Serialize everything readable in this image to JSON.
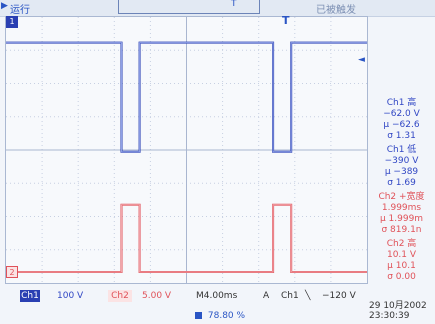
{
  "header": {
    "run_status": "运行",
    "trigger_status": "已被触发"
  },
  "markers": {
    "trigger_t": "T",
    "ch1": "1",
    "ch2": "2",
    "level_arrow": "◄",
    "run_icon": "▶"
  },
  "waveforms": {
    "ch1_color": "#2a3fb2",
    "ch2_color": "#e05259",
    "ch1_levels": {
      "high": -62.0,
      "low": -390
    },
    "ch2_levels": {
      "high": 10.1,
      "low": 0
    },
    "period_divisions": 4.2,
    "pulse_width_divisions": 0.5
  },
  "measurements": {
    "ch1_high": {
      "title": "Ch1 高",
      "value": "−62.0 V",
      "mean": "μ −62.6",
      "sigma": "σ 1.31"
    },
    "ch1_low": {
      "title": "Ch1 低",
      "value": "−390 V",
      "mean": "μ −389",
      "sigma": "σ 1.69"
    },
    "ch2_width": {
      "title": "Ch2 +宽度",
      "value": "1.999ms",
      "mean": "μ 1.999m",
      "sigma": "σ 819.1n"
    },
    "ch2_high": {
      "title": "Ch2 高",
      "value": "10.1 V",
      "mean": "μ 10.1",
      "sigma": "σ 0.00"
    }
  },
  "status": {
    "ch1_label": "Ch1",
    "ch1_scale": "100 V",
    "ch2_label": "Ch2",
    "ch2_scale": "5.00 V",
    "timebase": "M4.00ms",
    "trigger_mode": "A",
    "trigger_source": "Ch1",
    "trigger_edge": "╲",
    "trigger_level": "−120 V",
    "record_length": "78.80 %",
    "date": "29 10月2002",
    "time": "23:30:39"
  }
}
